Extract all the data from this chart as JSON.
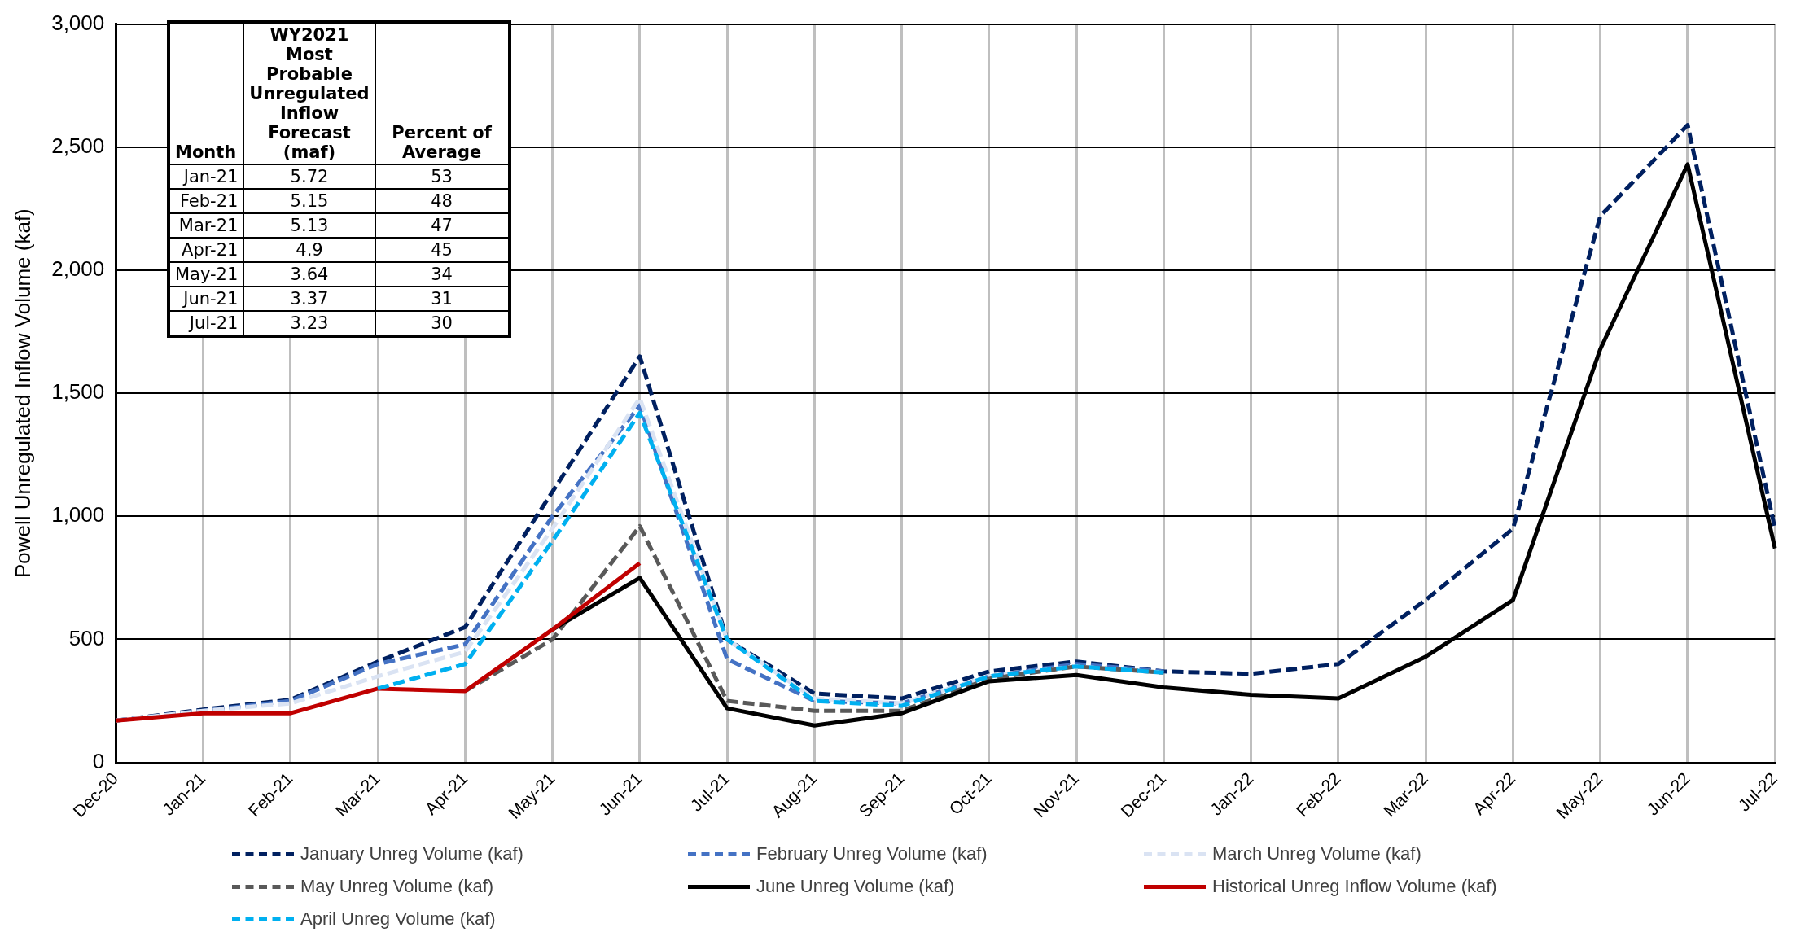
{
  "chart_data": [
    {
      "type": "line",
      "ylabel": "Powell Unregulated Inflow Volume (kaf)",
      "categories": [
        "Dec-20",
        "Jan-21",
        "Feb-21",
        "Mar-21",
        "Apr-21",
        "May-21",
        "Jun-21",
        "Jul-21",
        "Aug-21",
        "Sep-21",
        "Oct-21",
        "Nov-21",
        "Dec-21",
        "Jan-22",
        "Feb-22",
        "Mar-22",
        "Apr-22",
        "May-22",
        "Jun-22",
        "Jul-22"
      ],
      "ylim": [
        0,
        3000
      ],
      "yticks": [
        {
          "value": 0,
          "label": "0"
        },
        {
          "value": 500,
          "label": "500"
        },
        {
          "value": 1000,
          "label": "1,000"
        },
        {
          "value": 1500,
          "label": "1,500"
        },
        {
          "value": 2000,
          "label": "2,000"
        },
        {
          "value": 2500,
          "label": "2,500"
        },
        {
          "value": 3000,
          "label": "3,000"
        }
      ],
      "grid": true,
      "legend": "bottom",
      "marker": "none",
      "series": [
        {
          "name": "January Unreg Volume (kaf)",
          "color": "#002060",
          "line_style": "dashed",
          "values": [
            170,
            215,
            255,
            410,
            550,
            1100,
            1650,
            500,
            280,
            260,
            370,
            410,
            370,
            360,
            400,
            660,
            950,
            2220,
            2590,
            950
          ]
        },
        {
          "name": "February Unreg Volume (kaf)",
          "color": "#4472c4",
          "line_style": "dashed",
          "values": [
            170,
            210,
            250,
            400,
            480,
            1000,
            1450,
            420,
            250,
            240,
            350,
            400,
            370,
            null,
            null,
            null,
            null,
            null,
            null,
            null
          ]
        },
        {
          "name": "March  Unreg Volume (kaf)",
          "color": "#dae3f3",
          "line_style": "dashed",
          "values": [
            170,
            210,
            240,
            350,
            450,
            950,
            1480,
            500,
            260,
            240,
            350,
            390,
            365,
            null,
            null,
            null,
            null,
            null,
            null,
            null
          ]
        },
        {
          "name": "May  Unreg Volume (kaf)",
          "color": "#595959",
          "line_style": "dashed",
          "values": [
            null,
            null,
            null,
            null,
            290,
            500,
            960,
            250,
            210,
            210,
            340,
            390,
            365,
            null,
            null,
            null,
            null,
            null,
            null,
            null
          ]
        },
        {
          "name": "June  Unreg Volume (kaf)",
          "color": "#000000",
          "line_style": "solid",
          "values": [
            null,
            null,
            null,
            null,
            null,
            540,
            750,
            220,
            150,
            200,
            330,
            355,
            305,
            275,
            260,
            430,
            660,
            1680,
            2430,
            870
          ]
        },
        {
          "name": "Historical Unreg Inflow Volume (kaf)",
          "color": "#c00000",
          "line_style": "solid",
          "values": [
            170,
            200,
            200,
            300,
            290,
            540,
            810,
            null,
            null,
            null,
            null,
            null,
            null,
            null,
            null,
            null,
            null,
            null,
            null,
            null
          ]
        },
        {
          "name": "April  Unreg Volume (kaf)",
          "color": "#00b0f0",
          "line_style": "dashed",
          "values": [
            null,
            null,
            null,
            300,
            400,
            900,
            1420,
            500,
            250,
            230,
            350,
            390,
            365,
            null,
            null,
            null,
            null,
            null,
            null,
            null
          ]
        }
      ]
    },
    {
      "type": "other",
      "xlabel": "Month",
      "data_labels": true,
      "categories": [
        "Jan-21",
        "Feb-21",
        "Mar-21",
        "Apr-21",
        "May-21",
        "Jun-21",
        "Jul-21"
      ],
      "series": [
        {
          "name": "WY2021 Most Probable Unregulated Inflow Forecast (maf)",
          "values": [
            5.72,
            5.15,
            5.13,
            4.9,
            3.64,
            3.37,
            3.23
          ]
        },
        {
          "name": "Percent of Average",
          "values": [
            53,
            48,
            47,
            45,
            34,
            31,
            30
          ]
        }
      ]
    }
  ]
}
